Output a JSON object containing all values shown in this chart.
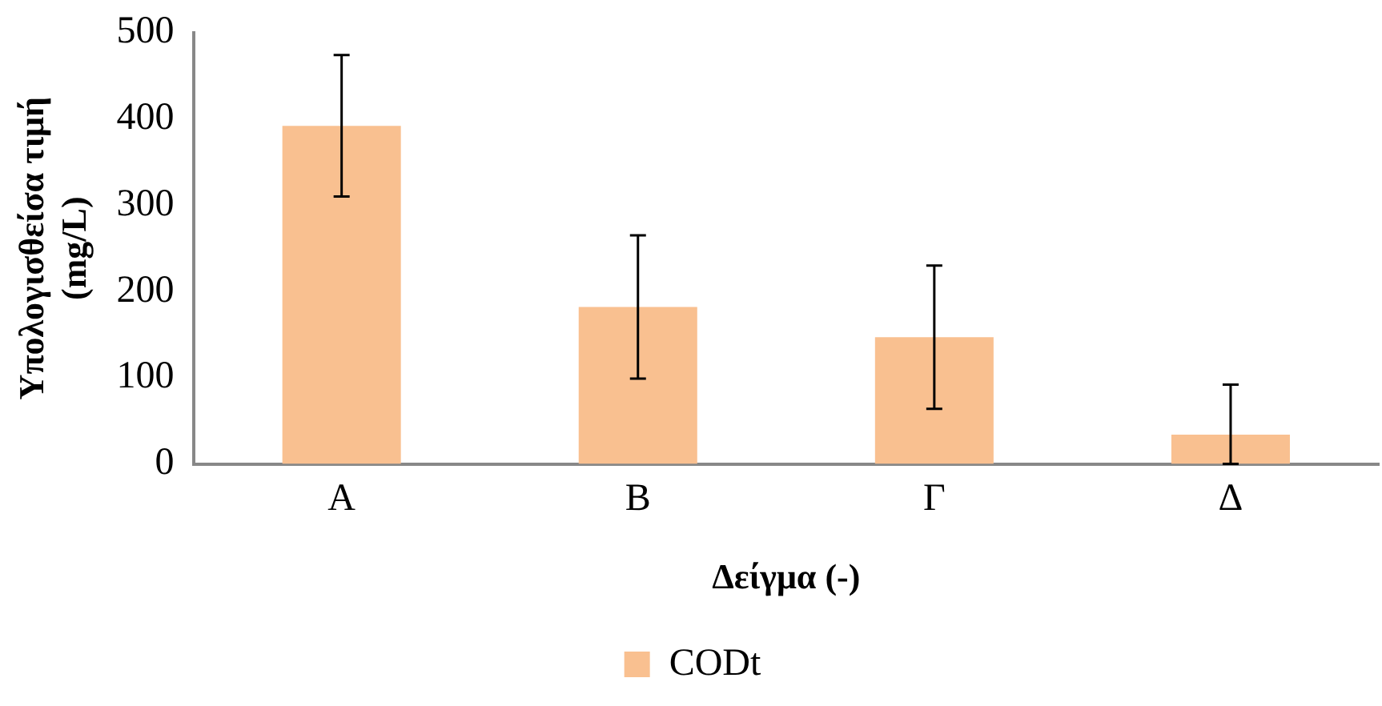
{
  "chart_data": {
    "type": "bar",
    "xlabel": "Δείγμα (-)",
    "ylabel": "Υπολογισθείσα τιμή (mg/L)",
    "categories": [
      "Α",
      "Β",
      "Γ",
      "Δ"
    ],
    "series": [
      {
        "name": "CODt",
        "color": "#f9c090",
        "values": [
          392,
          182,
          147,
          34
        ],
        "errors": [
          82,
          83,
          83,
          [
            0,
            92
          ]
        ]
      }
    ],
    "ylim": [
      0,
      500
    ],
    "yticks": [
      0,
      100,
      200,
      300,
      400,
      500
    ],
    "grid": false,
    "legend": "bottom"
  }
}
